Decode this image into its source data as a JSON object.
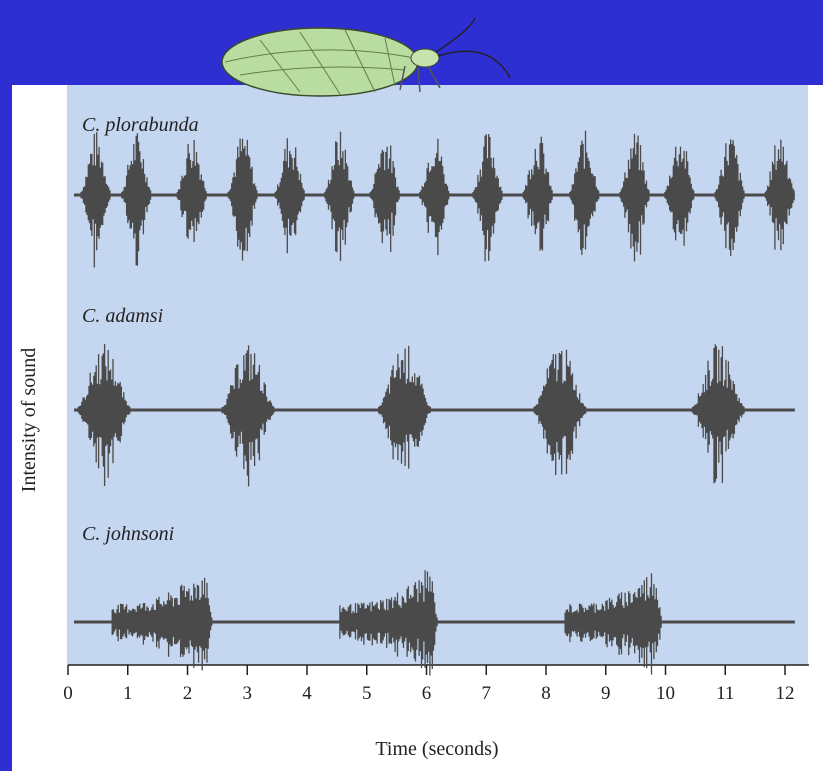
{
  "chart_data": {
    "type": "waveform",
    "xlabel": "Time (seconds)",
    "ylabel": "Intensity of sound",
    "xlim": [
      0,
      12.4
    ],
    "xticks": [
      0,
      1,
      2,
      3,
      4,
      5,
      6,
      7,
      8,
      9,
      10,
      11,
      12
    ],
    "color": "#4a4a4a",
    "series": [
      {
        "name": "C. plorabunda",
        "bursts": [
          [
            0.22,
            0.72
          ],
          [
            0.9,
            1.4
          ],
          [
            1.83,
            2.33
          ],
          [
            2.68,
            3.18
          ],
          [
            3.47,
            3.97
          ],
          [
            4.3,
            4.8
          ],
          [
            5.06,
            5.56
          ],
          [
            5.89,
            6.39
          ],
          [
            6.78,
            7.28
          ],
          [
            7.62,
            8.12
          ],
          [
            8.4,
            8.9
          ],
          [
            9.24,
            9.74
          ],
          [
            9.99,
            10.49
          ],
          [
            10.83,
            11.33
          ],
          [
            11.67,
            12.17
          ]
        ]
      },
      {
        "name": "C. adamsi",
        "bursts": [
          [
            0.17,
            1.04
          ],
          [
            2.58,
            3.45
          ],
          [
            5.2,
            6.07
          ],
          [
            7.8,
            8.67
          ],
          [
            10.45,
            11.32
          ]
        ]
      },
      {
        "name": "C. johnsoni",
        "bursts": [
          [
            0.74,
            2.41
          ],
          [
            4.55,
            6.18
          ],
          [
            8.32,
            9.94
          ]
        ]
      }
    ]
  }
}
